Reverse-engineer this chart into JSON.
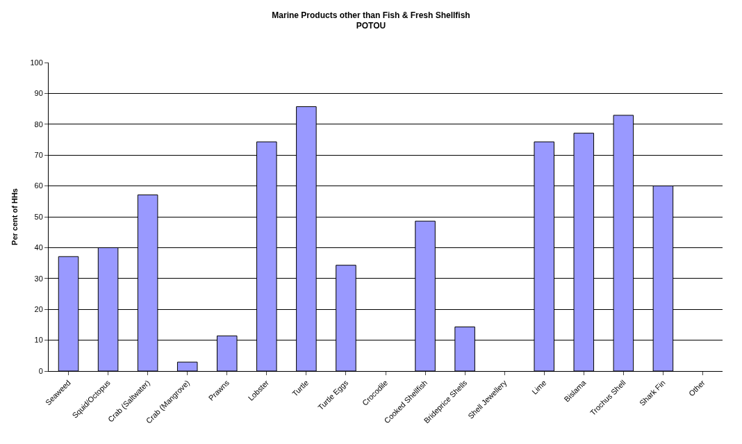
{
  "chart_data": {
    "type": "bar",
    "title": "Marine Products other than Fish & Fresh Shellfish",
    "subtitle": "POTOU",
    "ylabel": "Per cent of HHs",
    "categories": [
      "Seaweed",
      "Squid/Octopus",
      "Crab (Saltwater)",
      "Crab (Mangrove)",
      "Prawns",
      "Lobster",
      "Turtle",
      "Turtle Eggs",
      "Crocodile",
      "Cooked Shellfish",
      "Brideprice Shells",
      "Shell Jewellery",
      "Lime",
      "Bislama",
      "Trochus Shell",
      "Shark Fin",
      "Other"
    ],
    "values": [
      37.1,
      40,
      57.1,
      2.9,
      11.4,
      74.3,
      85.7,
      34.3,
      0,
      48.6,
      14.3,
      0,
      74.3,
      77.1,
      82.9,
      60,
      0
    ],
    "color": "#9999ff",
    "ylim": [
      0,
      100
    ],
    "yticks": [
      0,
      10,
      20,
      30,
      40,
      50,
      60,
      70,
      80,
      90,
      100
    ],
    "grid": "y"
  }
}
